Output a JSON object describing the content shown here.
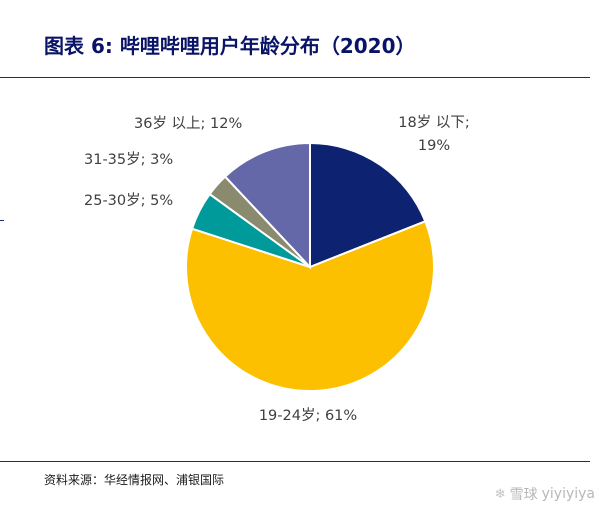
{
  "header": {
    "title": "图表 6: 哔哩哔哩用户年龄分布（2020）"
  },
  "source": "资料来源：华经情报网、浦银国际",
  "watermark": {
    "brand": "雪球",
    "user": "yiyiyiya",
    "icon": "snowball-icon"
  },
  "chart_data": {
    "type": "pie",
    "start_angle_deg": 0,
    "direction": "clockwise",
    "slices": [
      {
        "label": "18岁以下",
        "value": 19,
        "value_text": "19%",
        "color": "#0d2270"
      },
      {
        "label": "19-24岁",
        "value": 61,
        "value_text": "61%",
        "color": "#fcc000"
      },
      {
        "label": "25-30岁",
        "value": 5,
        "value_text": "5%",
        "color": "#009a9a"
      },
      {
        "label": "31-35岁",
        "value": 3,
        "value_text": "3%",
        "color": "#8a8a6e"
      },
      {
        "label": "36岁以上",
        "value": 12,
        "value_text": "12%",
        "color": "#6467a8"
      }
    ],
    "labels": [
      {
        "lines": [
          "18岁 以下;",
          "19%"
        ]
      },
      {
        "lines": [
          "19-24岁; 61%"
        ]
      },
      {
        "lines": [
          "25-30岁; 5%"
        ]
      },
      {
        "lines": [
          "31-35岁; 3%"
        ]
      },
      {
        "lines": [
          "36岁 以上; 12%"
        ]
      }
    ]
  }
}
